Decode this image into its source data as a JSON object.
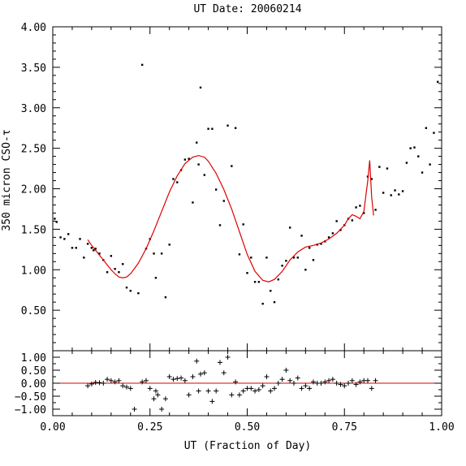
{
  "chart_data": [
    {
      "type": "scatter",
      "title": "UT Date: 20060214",
      "ylabel": "350 micron CSO-τ",
      "xlim": [
        0.0,
        1.0
      ],
      "ylim": [
        0.0,
        4.0
      ],
      "yticks": [
        "0.50",
        "1.00",
        "1.50",
        "2.00",
        "2.50",
        "3.00",
        "3.50",
        "4.00"
      ],
      "ytick_values": [
        0.5,
        1.0,
        1.5,
        2.0,
        2.5,
        3.0,
        3.5,
        4.0
      ],
      "colors": {
        "points": "#000000",
        "fit": "#e00000"
      },
      "series": [
        {
          "marker": "dot",
          "x": [
            0.005,
            0.01,
            0.02,
            0.03,
            0.04,
            0.05,
            0.06,
            0.07,
            0.08,
            0.09,
            0.1,
            0.105,
            0.11,
            0.12,
            0.13,
            0.14,
            0.15,
            0.16,
            0.17,
            0.18,
            0.19,
            0.2,
            0.22,
            0.23,
            0.24,
            0.25,
            0.26,
            0.265,
            0.28,
            0.29,
            0.3,
            0.31,
            0.32,
            0.33,
            0.34,
            0.35,
            0.36,
            0.37,
            0.375,
            0.38,
            0.39,
            0.4,
            0.41,
            0.42,
            0.43,
            0.44,
            0.45,
            0.46,
            0.47,
            0.48,
            0.49,
            0.5,
            0.51,
            0.52,
            0.53,
            0.54,
            0.55,
            0.56,
            0.57,
            0.58,
            0.59,
            0.6,
            0.61,
            0.62,
            0.63,
            0.64,
            0.65,
            0.66,
            0.67,
            0.68,
            0.69,
            0.7,
            0.71,
            0.72,
            0.73,
            0.74,
            0.75,
            0.76,
            0.77,
            0.78,
            0.79,
            0.8,
            0.81,
            0.82,
            0.83,
            0.84,
            0.85,
            0.86,
            0.87,
            0.88,
            0.89,
            0.9,
            0.91,
            0.92,
            0.93,
            0.94,
            0.95,
            0.96,
            0.97,
            0.98,
            0.99
          ],
          "y": [
            1.63,
            1.59,
            1.4,
            1.38,
            1.44,
            1.27,
            1.27,
            1.38,
            1.15,
            1.32,
            1.27,
            1.24,
            1.26,
            1.2,
            1.12,
            0.97,
            1.17,
            1.01,
            0.97,
            1.07,
            0.78,
            0.74,
            0.71,
            3.53,
            1.26,
            1.38,
            1.2,
            0.9,
            1.2,
            0.66,
            1.31,
            2.12,
            2.08,
            2.23,
            2.36,
            2.37,
            1.83,
            2.57,
            2.3,
            3.25,
            2.17,
            2.74,
            2.74,
            1.99,
            1.55,
            1.85,
            2.78,
            2.28,
            2.75,
            1.19,
            1.56,
            0.96,
            1.15,
            0.85,
            0.85,
            0.58,
            1.15,
            0.74,
            0.6,
            0.88,
            1.05,
            1.11,
            1.52,
            1.15,
            1.15,
            1.42,
            1.0,
            1.27,
            1.12,
            1.31,
            1.32,
            1.35,
            1.4,
            1.45,
            1.6,
            1.49,
            1.55,
            1.63,
            1.61,
            1.77,
            1.79,
            1.7,
            2.15,
            2.12,
            1.74,
            2.27,
            1.95,
            2.25,
            1.92,
            1.98,
            1.93,
            1.97,
            2.32,
            2.5,
            2.51,
            2.4,
            2.2,
            2.75,
            2.3,
            2.69,
            3.32
          ]
        },
        {
          "marker": "line",
          "x": [
            0.09,
            0.1,
            0.11,
            0.12,
            0.13,
            0.14,
            0.15,
            0.16,
            0.17,
            0.18,
            0.19,
            0.2,
            0.22,
            0.24,
            0.26,
            0.28,
            0.3,
            0.32,
            0.34,
            0.36,
            0.375,
            0.39,
            0.4,
            0.42,
            0.44,
            0.46,
            0.48,
            0.5,
            0.52,
            0.54,
            0.555,
            0.57,
            0.59,
            0.61,
            0.63,
            0.65,
            0.67,
            0.69,
            0.71,
            0.73,
            0.75,
            0.76,
            0.77,
            0.78,
            0.79,
            0.8,
            0.81,
            0.815,
            0.82,
            0.825
          ],
          "y": [
            1.37,
            1.3,
            1.24,
            1.18,
            1.12,
            1.06,
            1.0,
            0.95,
            0.91,
            0.9,
            0.91,
            0.95,
            1.08,
            1.26,
            1.48,
            1.72,
            1.96,
            2.16,
            2.31,
            2.39,
            2.41,
            2.39,
            2.34,
            2.19,
            1.99,
            1.75,
            1.47,
            1.19,
            0.98,
            0.87,
            0.85,
            0.88,
            0.98,
            1.12,
            1.22,
            1.28,
            1.3,
            1.33,
            1.38,
            1.45,
            1.55,
            1.63,
            1.68,
            1.66,
            1.63,
            1.72,
            2.1,
            2.35,
            1.9,
            1.67
          ]
        }
      ]
    },
    {
      "type": "scatter",
      "xlabel": "UT (Fraction of Day)",
      "xlim": [
        0.0,
        1.0
      ],
      "ylim": [
        -1.25,
        1.25
      ],
      "xticks": [
        "0.00",
        "0.25",
        "0.50",
        "0.75",
        "1.00"
      ],
      "xtick_values": [
        0.0,
        0.25,
        0.5,
        0.75,
        1.0
      ],
      "yticks": [
        "−1.00",
        "−0.50",
        "0.00",
        "0.50",
        "1.00"
      ],
      "ytick_values": [
        -1.0,
        -0.5,
        0.0,
        0.5,
        1.0
      ],
      "series": [
        {
          "marker": "plus",
          "x": [
            0.09,
            0.1,
            0.11,
            0.12,
            0.13,
            0.14,
            0.15,
            0.16,
            0.17,
            0.18,
            0.19,
            0.2,
            0.21,
            0.23,
            0.24,
            0.25,
            0.26,
            0.265,
            0.27,
            0.28,
            0.29,
            0.3,
            0.31,
            0.32,
            0.33,
            0.34,
            0.35,
            0.36,
            0.37,
            0.375,
            0.38,
            0.39,
            0.4,
            0.41,
            0.42,
            0.43,
            0.44,
            0.45,
            0.46,
            0.47,
            0.48,
            0.49,
            0.5,
            0.51,
            0.52,
            0.53,
            0.54,
            0.55,
            0.56,
            0.57,
            0.58,
            0.59,
            0.6,
            0.61,
            0.62,
            0.63,
            0.64,
            0.65,
            0.66,
            0.67,
            0.68,
            0.69,
            0.7,
            0.71,
            0.72,
            0.73,
            0.74,
            0.75,
            0.76,
            0.77,
            0.78,
            0.79,
            0.8,
            0.81,
            0.82,
            0.83
          ],
          "y": [
            -0.1,
            -0.03,
            0.03,
            0.02,
            0.0,
            0.15,
            0.1,
            0.05,
            0.1,
            -0.1,
            -0.15,
            -0.2,
            -1.0,
            0.05,
            0.1,
            -0.2,
            -0.6,
            -0.3,
            -0.45,
            -1.0,
            -0.6,
            0.25,
            0.15,
            0.18,
            0.2,
            0.1,
            -0.45,
            0.25,
            0.85,
            -0.3,
            0.35,
            0.4,
            -0.3,
            -0.7,
            -0.3,
            0.8,
            0.4,
            1.0,
            -0.45,
            0.05,
            -0.45,
            -0.3,
            -0.2,
            -0.2,
            -0.3,
            -0.25,
            -0.1,
            0.25,
            -0.3,
            -0.2,
            0.0,
            0.15,
            0.5,
            0.1,
            0.0,
            0.2,
            -0.2,
            -0.1,
            -0.2,
            0.05,
            0.0,
            0.0,
            0.05,
            0.1,
            0.15,
            0.0,
            -0.05,
            -0.1,
            0.0,
            0.1,
            -0.05,
            0.05,
            0.1,
            0.1,
            -0.2,
            0.1
          ]
        }
      ]
    }
  ]
}
